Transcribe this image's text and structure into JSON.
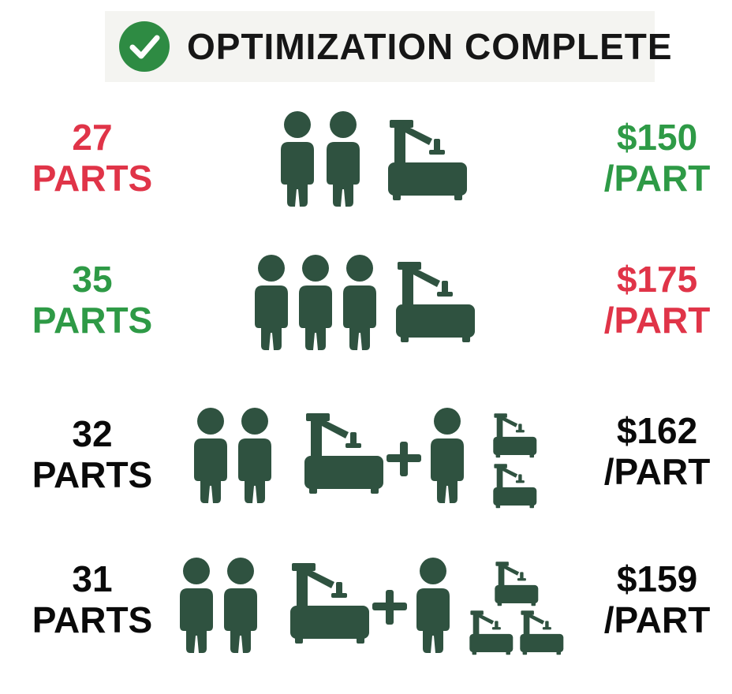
{
  "header": {
    "title": "OPTIMIZATION COMPLETE",
    "icon": "check-circle-icon",
    "icon_color": "#2e8b43"
  },
  "colors": {
    "icon": "#2f5240",
    "bad": "#e03448",
    "good": "#2e9a46",
    "neutral": "#0a0a0a"
  },
  "rows": [
    {
      "qty": "27",
      "qty_unit": "PARTS",
      "price": "$150",
      "price_unit": "/PART",
      "workers": 2,
      "machines": 1,
      "extra_workers": 0,
      "small_machines": 0
    },
    {
      "qty": "35",
      "qty_unit": "PARTS",
      "price": "$175",
      "price_unit": "/PART",
      "workers": 3,
      "machines": 1,
      "extra_workers": 0,
      "small_machines": 0
    },
    {
      "qty": "32",
      "qty_unit": "PARTS",
      "price": "$162",
      "price_unit": "/PART",
      "workers": 2,
      "machines": 1,
      "extra_workers": 1,
      "small_machines": 2
    },
    {
      "qty": "31",
      "qty_unit": "PARTS",
      "price": "$159",
      "price_unit": "/PART",
      "workers": 2,
      "machines": 1,
      "extra_workers": 1,
      "small_machines": 3
    }
  ]
}
